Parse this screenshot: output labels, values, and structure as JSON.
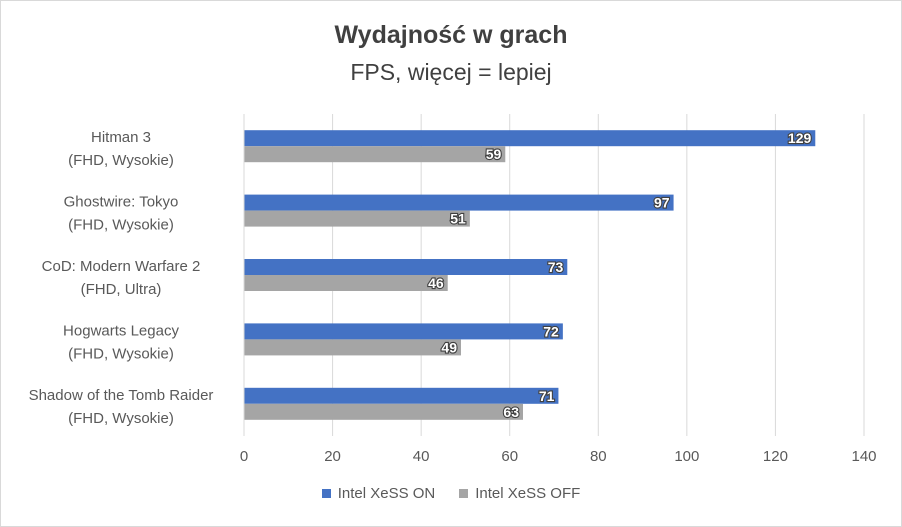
{
  "chart_data": {
    "type": "bar",
    "orientation": "horizontal",
    "title": "Wydajność w grach",
    "subtitle": "FPS, więcej = lepiej",
    "categories": [
      [
        "Hitman 3",
        "(FHD, Wysokie)"
      ],
      [
        "Ghostwire: Tokyo",
        "(FHD, Wysokie)"
      ],
      [
        "CoD: Modern Warfare 2",
        "(FHD, Ultra)"
      ],
      [
        "Hogwarts Legacy",
        "(FHD, Wysokie)"
      ],
      [
        "Shadow of the Tomb Raider",
        "(FHD, Wysokie)"
      ]
    ],
    "series": [
      {
        "name": "Intel XeSS ON",
        "color": "#4472c4",
        "values": [
          129,
          97,
          73,
          72,
          71
        ]
      },
      {
        "name": "Intel XeSS OFF",
        "color": "#a5a5a5",
        "values": [
          59,
          51,
          46,
          49,
          63
        ]
      }
    ],
    "xlim": [
      0,
      140
    ],
    "xticks": [
      0,
      20,
      40,
      60,
      80,
      100,
      120,
      140
    ],
    "grid": true,
    "legend_position": "bottom"
  }
}
